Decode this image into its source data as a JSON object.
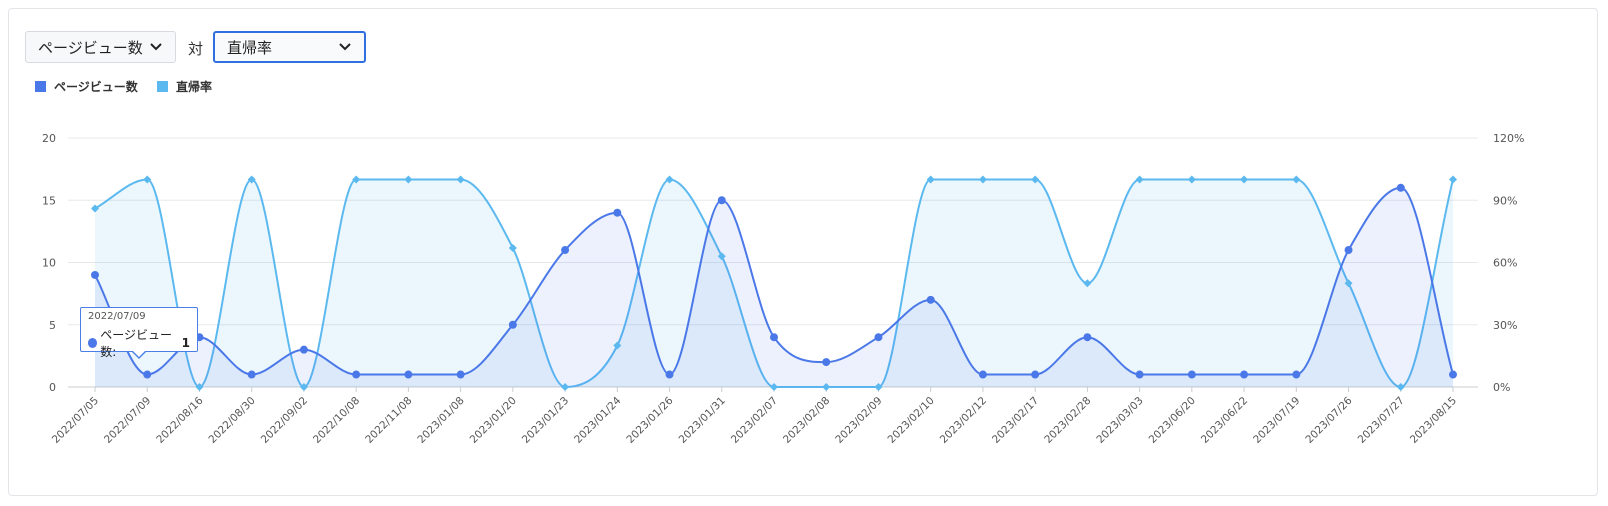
{
  "controls": {
    "primary_metric": "ページビュー数",
    "vs_label": "対",
    "secondary_metric": "直帰率"
  },
  "tooltip": {
    "date": "2022/07/09",
    "series_label": "ページビュー数:",
    "value": "1"
  },
  "chart_data": {
    "type": "line",
    "title": "",
    "categories": [
      "2022/07/05",
      "2022/07/09",
      "2022/08/16",
      "2022/08/30",
      "2022/09/02",
      "2022/10/08",
      "2022/11/08",
      "2023/01/08",
      "2023/01/20",
      "2023/01/23",
      "2023/01/24",
      "2023/01/26",
      "2023/01/31",
      "2023/02/07",
      "2023/02/08",
      "2023/02/09",
      "2023/02/10",
      "2023/02/12",
      "2023/02/17",
      "2023/02/28",
      "2023/03/03",
      "2023/06/20",
      "2023/06/22",
      "2023/07/19",
      "2023/07/26",
      "2023/07/27",
      "2023/08/15"
    ],
    "series": [
      {
        "name": "ページビュー数",
        "axis": "left",
        "color": "#4b78e8",
        "values": [
          9,
          1,
          4,
          1,
          3,
          1,
          1,
          1,
          5,
          11,
          14,
          1,
          15,
          4,
          2,
          4,
          7,
          1,
          1,
          4,
          1,
          1,
          1,
          1,
          11,
          16,
          1
        ]
      },
      {
        "name": "直帰率",
        "axis": "right",
        "color": "#5bb9f0",
        "values": [
          86,
          100,
          0,
          100,
          0,
          100,
          100,
          100,
          67,
          0,
          20,
          100,
          63,
          0,
          0,
          0,
          100,
          100,
          100,
          50,
          100,
          100,
          100,
          100,
          50,
          0,
          100
        ]
      }
    ],
    "y_left": {
      "min": 0,
      "max": 20,
      "ticks": [
        0,
        5,
        10,
        15,
        20
      ]
    },
    "y_right": {
      "min": 0,
      "max": 120,
      "ticks": [
        "0%",
        "30%",
        "60%",
        "90%",
        "120%"
      ]
    },
    "grid": true,
    "legend": "top-left"
  }
}
